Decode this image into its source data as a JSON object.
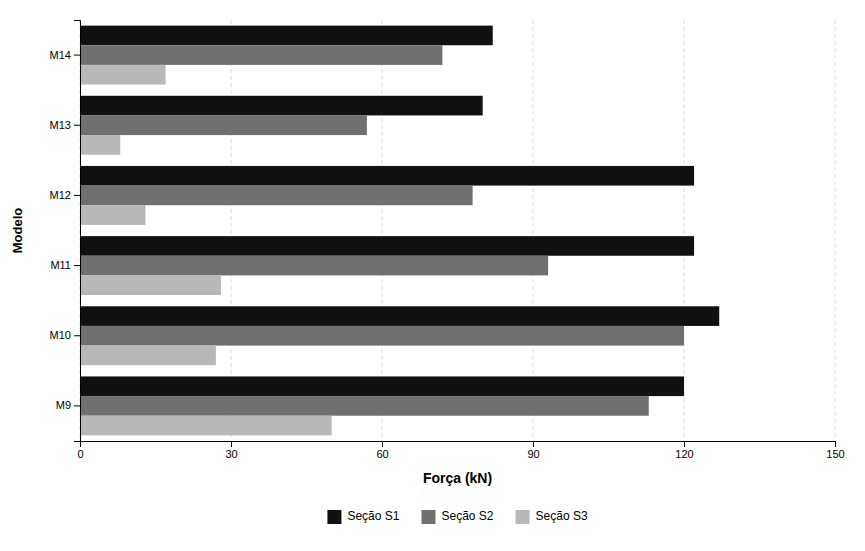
{
  "chart_data": {
    "type": "bar",
    "orientation": "horizontal",
    "categories": [
      "M9",
      "M10",
      "M11",
      "M12",
      "M13",
      "M14"
    ],
    "series": [
      {
        "name": "Seção S1",
        "color": "#111111",
        "values": [
          120,
          127,
          122,
          122,
          80,
          82
        ]
      },
      {
        "name": "Seção S2",
        "color": "#707070",
        "values": [
          113,
          120,
          93,
          78,
          57,
          72
        ]
      },
      {
        "name": "Seção S3",
        "color": "#b8b8b8",
        "values": [
          50,
          27,
          28,
          13,
          8,
          17
        ]
      }
    ],
    "xlabel": "Força (kN)",
    "ylabel": "Modelo",
    "xlim": [
      0,
      150
    ],
    "xticks": [
      0,
      30,
      60,
      90,
      120,
      150
    ],
    "grid": true,
    "legend": "bottom"
  }
}
